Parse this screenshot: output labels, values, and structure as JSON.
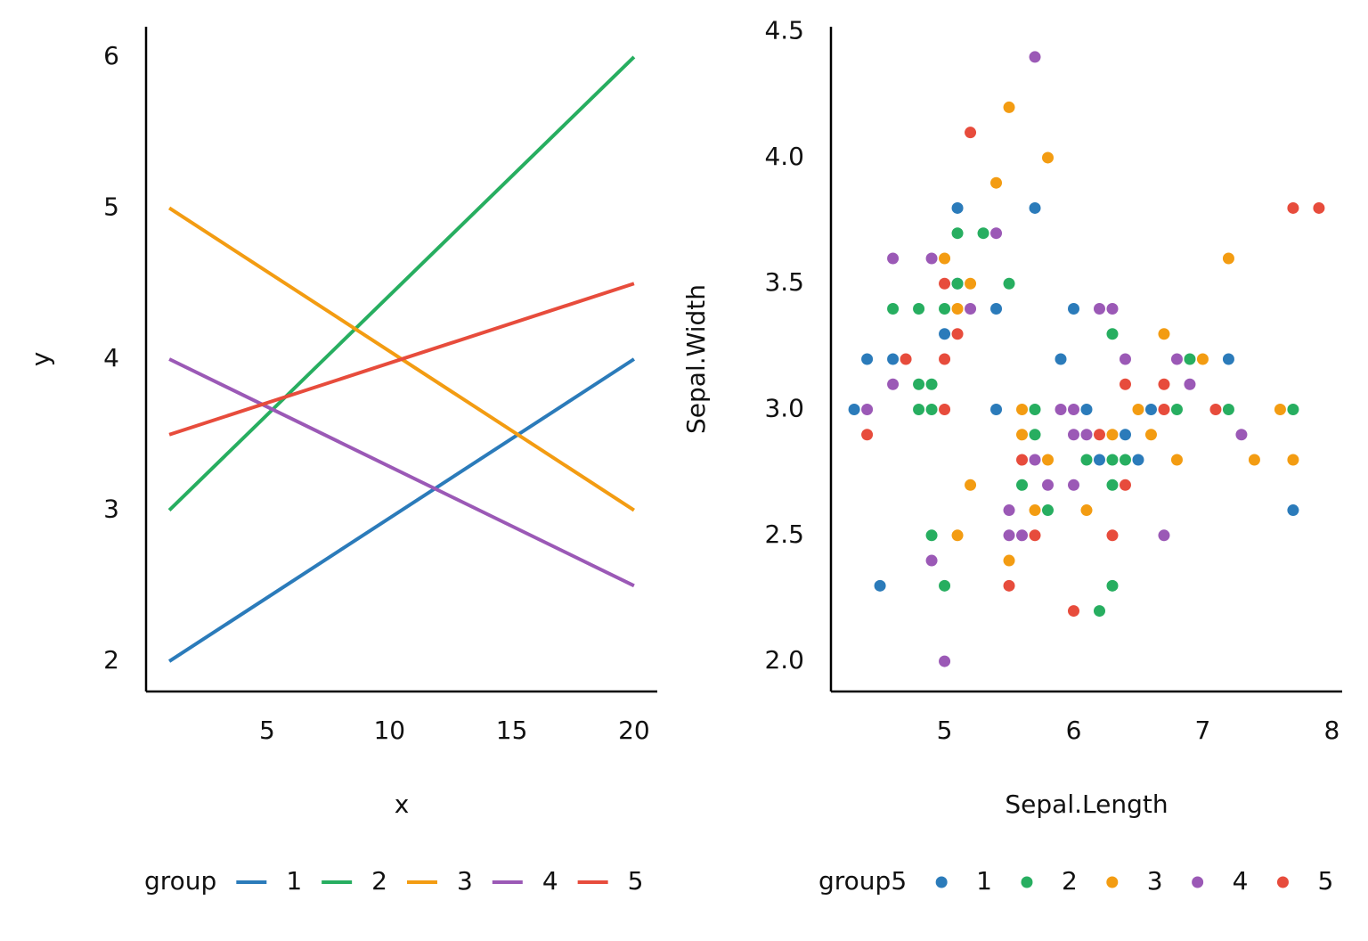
{
  "chart_data": [
    {
      "type": "line",
      "x_label": "x",
      "y_label": "y",
      "legend_title": "group",
      "legend": "bottom",
      "x": [
        1,
        20
      ],
      "xlim": [
        0.05,
        20.95
      ],
      "xticks": [
        5,
        10,
        15,
        20
      ],
      "ylim": [
        1.8,
        6.2
      ],
      "yticks": [
        2,
        3,
        4,
        5,
        6
      ],
      "grid": false,
      "series": [
        {
          "name": "1",
          "color": "#2b7bba",
          "values": [
            2,
            4
          ]
        },
        {
          "name": "2",
          "color": "#27ae60",
          "values": [
            3,
            6
          ]
        },
        {
          "name": "3",
          "color": "#f39c12",
          "values": [
            5,
            3
          ]
        },
        {
          "name": "4",
          "color": "#9b59b6",
          "values": [
            4,
            2.5
          ]
        },
        {
          "name": "5",
          "color": "#e74c3c",
          "values": [
            3.5,
            4.5
          ]
        }
      ]
    },
    {
      "type": "scatter",
      "x_label": "Sepal.Length",
      "y_label": "Sepal.Width",
      "legend_title": "group5",
      "legend": "bottom",
      "xlim": [
        4.12,
        8.08
      ],
      "xticks": [
        5,
        6,
        7,
        8
      ],
      "ylim": [
        1.88,
        4.52
      ],
      "yticks": [
        {
          "value": 2,
          "label": "2.0"
        },
        2.5,
        {
          "value": 3,
          "label": "3.0"
        },
        3.5,
        {
          "value": 4,
          "label": "4.0"
        },
        4.5
      ],
      "grid": false,
      "series": [
        {
          "name": "1",
          "color": "#2b7bba",
          "x": [
            5.1,
            5.7,
            5.1,
            5.4,
            6.0,
            5.0,
            4.4,
            4.6,
            5.9,
            7.2,
            4.3,
            5.4,
            6.1,
            6.6,
            6.4,
            6.2,
            6.5,
            7.7,
            4.5
          ],
          "y": [
            3.8,
            3.8,
            3.5,
            3.4,
            3.4,
            3.3,
            3.2,
            3.2,
            3.2,
            3.2,
            3.0,
            3.0,
            3.0,
            3.0,
            2.9,
            2.8,
            2.8,
            2.6,
            2.3
          ]
        },
        {
          "name": "2",
          "color": "#27ae60",
          "x": [
            5.1,
            5.3,
            5.1,
            5.5,
            4.6,
            4.8,
            5.0,
            6.3,
            6.9,
            4.8,
            4.9,
            4.8,
            4.9,
            5.7,
            6.8,
            7.2,
            7.7,
            5.7,
            6.1,
            6.3,
            6.4,
            5.6,
            6.3,
            5.8,
            4.9,
            5.0,
            6.3,
            6.2
          ],
          "y": [
            3.7,
            3.7,
            3.5,
            3.5,
            3.4,
            3.4,
            3.4,
            3.3,
            3.2,
            3.1,
            3.1,
            3.0,
            3.0,
            3.0,
            3.0,
            3.0,
            3.0,
            2.9,
            2.8,
            2.8,
            2.8,
            2.7,
            2.7,
            2.6,
            2.5,
            2.3,
            2.3,
            2.2
          ]
        },
        {
          "name": "3",
          "color": "#f39c12",
          "x": [
            5.5,
            5.8,
            5.4,
            5.0,
            7.2,
            5.2,
            5.1,
            6.7,
            7.0,
            5.6,
            6.5,
            7.6,
            5.6,
            6.3,
            6.6,
            5.8,
            6.8,
            7.4,
            7.7,
            5.2,
            5.7,
            6.1,
            5.1,
            5.5
          ],
          "y": [
            4.2,
            4.0,
            3.9,
            3.6,
            3.6,
            3.5,
            3.4,
            3.3,
            3.2,
            3.0,
            3.0,
            3.0,
            2.9,
            2.9,
            2.9,
            2.8,
            2.8,
            2.8,
            2.8,
            2.7,
            2.6,
            2.6,
            2.5,
            2.4
          ]
        },
        {
          "name": "4",
          "color": "#9b59b6",
          "x": [
            5.7,
            5.4,
            4.6,
            4.9,
            5.2,
            6.2,
            6.3,
            6.4,
            6.8,
            4.6,
            6.9,
            4.4,
            5.9,
            6.0,
            6.0,
            6.1,
            7.3,
            5.7,
            5.8,
            6.0,
            5.5,
            5.5,
            5.6,
            6.7,
            4.9,
            5.0
          ],
          "y": [
            4.4,
            3.7,
            3.6,
            3.6,
            3.4,
            3.4,
            3.4,
            3.2,
            3.2,
            3.1,
            3.1,
            3.0,
            3.0,
            3.0,
            2.9,
            2.9,
            2.9,
            2.8,
            2.7,
            2.7,
            2.6,
            2.5,
            2.5,
            2.5,
            2.4,
            2.0
          ]
        },
        {
          "name": "5",
          "color": "#e74c3c",
          "x": [
            5.2,
            7.7,
            7.9,
            5.0,
            5.1,
            4.7,
            5.0,
            6.4,
            6.7,
            5.0,
            6.7,
            7.1,
            4.4,
            6.2,
            5.6,
            6.4,
            5.7,
            6.3,
            5.5,
            6.0
          ],
          "y": [
            4.1,
            3.8,
            3.8,
            3.5,
            3.3,
            3.2,
            3.2,
            3.1,
            3.1,
            3.0,
            3.0,
            3.0,
            2.9,
            2.9,
            2.8,
            2.7,
            2.5,
            2.5,
            2.3,
            2.2
          ]
        }
      ]
    }
  ]
}
